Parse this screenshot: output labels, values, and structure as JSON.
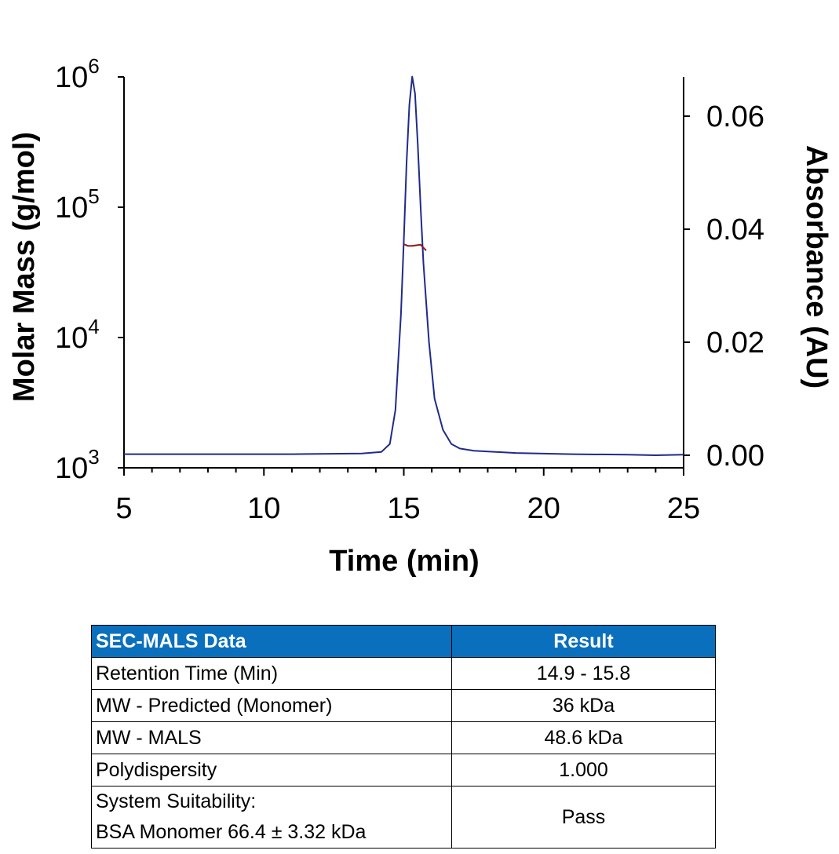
{
  "chart_data": {
    "type": "line",
    "xlabel": "Time (min)",
    "ylabel_left": "Molar Mass (g/mol)",
    "ylabel_right": "Absorbance (AU)",
    "xlim": [
      5,
      25
    ],
    "x_ticks": [
      "5",
      "10",
      "15",
      "20",
      "25"
    ],
    "ylim_left": [
      1000,
      1000000
    ],
    "y_left_scale": "log",
    "y_left_ticks": [
      {
        "base": "10",
        "exp": "6"
      },
      {
        "base": "10",
        "exp": "5"
      },
      {
        "base": "10",
        "exp": "4"
      },
      {
        "base": "10",
        "exp": "3"
      }
    ],
    "ylim_right": [
      -0.002,
      0.067
    ],
    "y_right_ticks": [
      "0.06",
      "0.04",
      "0.02",
      "0.00"
    ],
    "grid": false,
    "series": [
      {
        "axis": "right",
        "color": "#1f2a8c",
        "x": [
          5.0,
          8.0,
          11.0,
          13.5,
          14.2,
          14.5,
          14.7,
          14.9,
          15.0,
          15.1,
          15.2,
          15.3,
          15.4,
          15.5,
          15.6,
          15.7,
          15.9,
          16.1,
          16.4,
          16.7,
          17.0,
          17.5,
          19.0,
          21.0,
          23.0,
          24.0,
          25.0
        ],
        "y": [
          0.0002,
          0.0002,
          0.0002,
          0.0003,
          0.0006,
          0.002,
          0.008,
          0.025,
          0.038,
          0.052,
          0.062,
          0.067,
          0.064,
          0.055,
          0.044,
          0.034,
          0.02,
          0.01,
          0.0045,
          0.002,
          0.0012,
          0.0008,
          0.0004,
          0.0002,
          0.0001,
          0.0,
          0.0001
        ]
      },
      {
        "axis": "left",
        "color": "#8b1a1a",
        "x": [
          15.0,
          15.15,
          15.3,
          15.45,
          15.6,
          15.8
        ],
        "y": [
          52000,
          50500,
          50500,
          51000,
          51500,
          46500
        ]
      }
    ]
  },
  "table": {
    "headers": [
      "SEC-MALS Data",
      "Result"
    ],
    "rows": [
      {
        "label": "Retention Time (Min)",
        "value": "14.9 - 15.8"
      },
      {
        "label": "MW - Predicted (Monomer)",
        "value": "36 kDa"
      },
      {
        "label": "MW - MALS",
        "value": "48.6 kDa"
      },
      {
        "label": "Polydispersity",
        "value": "1.000"
      }
    ],
    "last_row": {
      "label_line1": "System Suitability:",
      "label_line2": "BSA Monomer 66.4 ± 3.32 kDa",
      "value": "Pass"
    }
  }
}
